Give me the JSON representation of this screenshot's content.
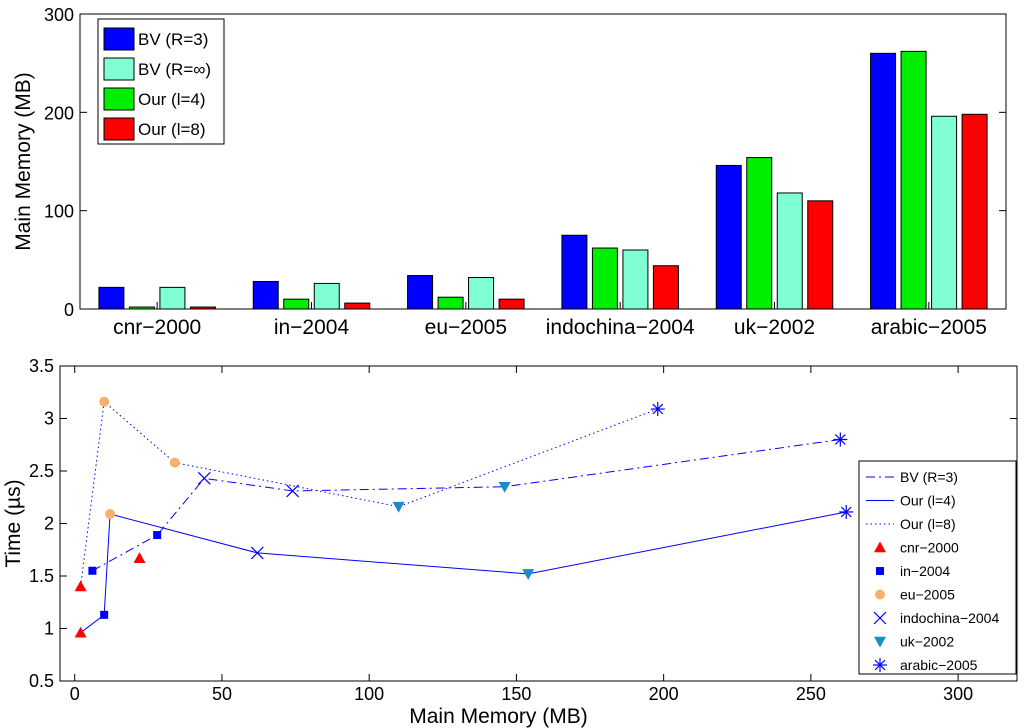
{
  "chart_data": [
    {
      "type": "bar",
      "title": "",
      "xlabel": "",
      "ylabel": "Main Memory (MB)",
      "ylim": [
        0,
        300
      ],
      "yticks": [
        "0",
        "100",
        "200",
        "300"
      ],
      "categories": [
        "cnr−2000",
        "in−2004",
        "eu−2005",
        "indochina−2004",
        "uk−2002",
        "arabic−2005"
      ],
      "series": [
        {
          "name": "BV (R=3)",
          "color": "#0000ff",
          "values": [
            22,
            28,
            34,
            75,
            146,
            260
          ]
        },
        {
          "name": "Our (l=4)",
          "color": "#00ee00",
          "values": [
            2,
            10,
            12,
            62,
            154,
            262
          ]
        },
        {
          "name": "BV (R=∞)",
          "color": "#80ffd5",
          "values": [
            22,
            26,
            32,
            60,
            118,
            196
          ]
        },
        {
          "name": "Our (l=8)",
          "color": "#ff0000",
          "values": [
            2,
            6,
            10,
            44,
            110,
            198
          ]
        }
      ],
      "legend": {
        "position": "top-left",
        "entries": [
          {
            "label": "BV (R=3)",
            "color": "#0000ff"
          },
          {
            "label": "BV (R=∞)",
            "color": "#80ffd5"
          },
          {
            "label": "Our (l=4)",
            "color": "#00ee00"
          },
          {
            "label": "Our (l=8)",
            "color": "#ff0000"
          }
        ]
      }
    },
    {
      "type": "scatter",
      "title": "",
      "xlabel": "Main Memory (MB)",
      "ylabel": "Time (µs)",
      "xlim": [
        -5,
        320
      ],
      "ylim": [
        0.5,
        3.5
      ],
      "xticks": [
        "0",
        "50",
        "100",
        "150",
        "200",
        "250",
        "300"
      ],
      "yticks": [
        "0.5",
        "1",
        "1.5",
        "2",
        "2.5",
        "3",
        "3.5"
      ],
      "lines": [
        {
          "name": "BV (R=3)",
          "style": "dash-dot",
          "color": "#0000ff",
          "x": [
            6,
            28,
            44,
            74,
            146,
            260
          ],
          "y": [
            1.55,
            1.89,
            2.43,
            2.31,
            2.35,
            2.8
          ]
        },
        {
          "name": "Our (l=4)",
          "style": "solid",
          "color": "#0000ff",
          "x": [
            2,
            10,
            12,
            62,
            154,
            262
          ],
          "y": [
            0.96,
            1.13,
            2.09,
            1.72,
            1.52,
            2.11
          ]
        },
        {
          "name": "Our (l=8)",
          "style": "dotted",
          "color": "#0000ff",
          "x": [
            2,
            10,
            34,
            110,
            198
          ],
          "y": [
            1.4,
            3.16,
            2.58,
            2.16,
            3.09
          ]
        }
      ],
      "datasets": [
        {
          "name": "cnr−2000",
          "marker": "triangle-up",
          "color": "#ff0000",
          "points": [
            [
              2,
              1.4
            ],
            [
              2,
              0.96
            ],
            [
              22,
              1.67
            ]
          ]
        },
        {
          "name": "in−2004",
          "marker": "square",
          "color": "#0000ff",
          "points": [
            [
              6,
              1.55
            ],
            [
              10,
              1.13
            ],
            [
              28,
              1.89
            ]
          ]
        },
        {
          "name": "eu−2005",
          "marker": "circle",
          "color": "#f8b06a",
          "points": [
            [
              10,
              3.16
            ],
            [
              12,
              2.09
            ],
            [
              34,
              2.58
            ]
          ]
        },
        {
          "name": "indochina−2004",
          "marker": "x",
          "color": "#0000ff",
          "points": [
            [
              44,
              2.43
            ],
            [
              62,
              1.72
            ],
            [
              74,
              2.31
            ]
          ]
        },
        {
          "name": "uk−2002",
          "marker": "triangle-down",
          "color": "#1c8cc8",
          "points": [
            [
              110,
              2.16
            ],
            [
              146,
              2.35
            ],
            [
              154,
              1.52
            ]
          ]
        },
        {
          "name": "arabic−2005",
          "marker": "asterisk",
          "color": "#0000ff",
          "points": [
            [
              198,
              3.09
            ],
            [
              260,
              2.8
            ],
            [
              262,
              2.11
            ]
          ]
        }
      ],
      "legend": {
        "position": "right",
        "entries": [
          {
            "label": "BV (R=3)",
            "kind": "line",
            "style": "dash-dot"
          },
          {
            "label": "Our (l=4)",
            "kind": "line",
            "style": "solid"
          },
          {
            "label": "Our (l=8)",
            "kind": "line",
            "style": "dotted"
          },
          {
            "label": "cnr−2000",
            "kind": "marker",
            "marker": "triangle-up",
            "color": "#ff0000"
          },
          {
            "label": "in−2004",
            "kind": "marker",
            "marker": "square",
            "color": "#0000ff"
          },
          {
            "label": "eu−2005",
            "kind": "marker",
            "marker": "circle",
            "color": "#f8b06a"
          },
          {
            "label": "indochina−2004",
            "kind": "marker",
            "marker": "x",
            "color": "#0000ff"
          },
          {
            "label": "uk−2002",
            "kind": "marker",
            "marker": "triangle-down",
            "color": "#1c8cc8"
          },
          {
            "label": "arabic−2005",
            "kind": "marker",
            "marker": "asterisk",
            "color": "#0000ff"
          }
        ]
      }
    }
  ]
}
